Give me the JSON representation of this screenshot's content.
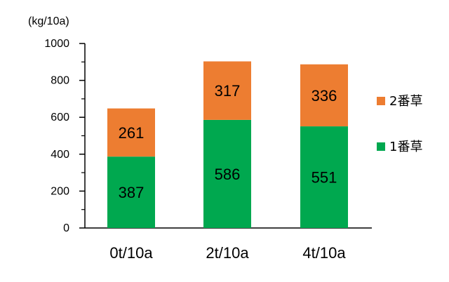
{
  "chart_data": {
    "type": "bar",
    "stacked": true,
    "unit": "(kg/10a)",
    "categories": [
      "0t/10a",
      "2t/10a",
      "4t/10a"
    ],
    "series": [
      {
        "name": "1番草",
        "values": [
          387,
          586,
          551
        ],
        "color": "#00a84f"
      },
      {
        "name": "2番草",
        "values": [
          261,
          317,
          336
        ],
        "color": "#ed7d31"
      }
    ],
    "ylim": [
      0,
      1000
    ],
    "yticks": [
      0,
      200,
      400,
      600,
      800,
      1000
    ],
    "grid": false,
    "legend_placement": "right"
  }
}
